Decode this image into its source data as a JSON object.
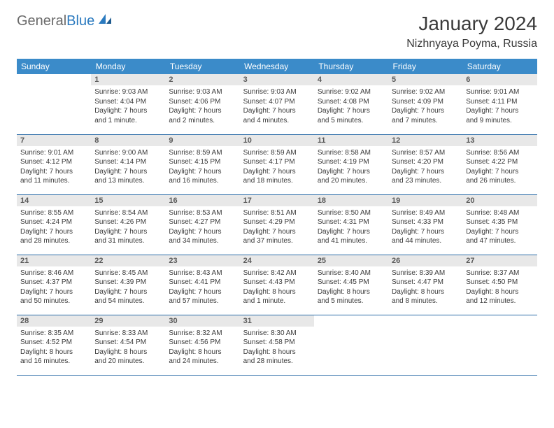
{
  "logo": {
    "part1": "General",
    "part2": "Blue"
  },
  "header": {
    "month": "January 2024",
    "location": "Nizhnyaya Poyma, Russia"
  },
  "colors": {
    "header_bg": "#3b8bc9",
    "header_text": "#ffffff",
    "daynum_bg": "#e8e8e8",
    "row_border": "#2b6ca8",
    "body_text": "#3a3a3a",
    "logo_accent": "#2b7abf"
  },
  "days_of_week": [
    "Sunday",
    "Monday",
    "Tuesday",
    "Wednesday",
    "Thursday",
    "Friday",
    "Saturday"
  ],
  "weeks": [
    [
      {
        "empty": true
      },
      {
        "num": "1",
        "sunrise": "Sunrise: 9:03 AM",
        "sunset": "Sunset: 4:04 PM",
        "daylight1": "Daylight: 7 hours",
        "daylight2": "and 1 minute."
      },
      {
        "num": "2",
        "sunrise": "Sunrise: 9:03 AM",
        "sunset": "Sunset: 4:06 PM",
        "daylight1": "Daylight: 7 hours",
        "daylight2": "and 2 minutes."
      },
      {
        "num": "3",
        "sunrise": "Sunrise: 9:03 AM",
        "sunset": "Sunset: 4:07 PM",
        "daylight1": "Daylight: 7 hours",
        "daylight2": "and 4 minutes."
      },
      {
        "num": "4",
        "sunrise": "Sunrise: 9:02 AM",
        "sunset": "Sunset: 4:08 PM",
        "daylight1": "Daylight: 7 hours",
        "daylight2": "and 5 minutes."
      },
      {
        "num": "5",
        "sunrise": "Sunrise: 9:02 AM",
        "sunset": "Sunset: 4:09 PM",
        "daylight1": "Daylight: 7 hours",
        "daylight2": "and 7 minutes."
      },
      {
        "num": "6",
        "sunrise": "Sunrise: 9:01 AM",
        "sunset": "Sunset: 4:11 PM",
        "daylight1": "Daylight: 7 hours",
        "daylight2": "and 9 minutes."
      }
    ],
    [
      {
        "num": "7",
        "sunrise": "Sunrise: 9:01 AM",
        "sunset": "Sunset: 4:12 PM",
        "daylight1": "Daylight: 7 hours",
        "daylight2": "and 11 minutes."
      },
      {
        "num": "8",
        "sunrise": "Sunrise: 9:00 AM",
        "sunset": "Sunset: 4:14 PM",
        "daylight1": "Daylight: 7 hours",
        "daylight2": "and 13 minutes."
      },
      {
        "num": "9",
        "sunrise": "Sunrise: 8:59 AM",
        "sunset": "Sunset: 4:15 PM",
        "daylight1": "Daylight: 7 hours",
        "daylight2": "and 16 minutes."
      },
      {
        "num": "10",
        "sunrise": "Sunrise: 8:59 AM",
        "sunset": "Sunset: 4:17 PM",
        "daylight1": "Daylight: 7 hours",
        "daylight2": "and 18 minutes."
      },
      {
        "num": "11",
        "sunrise": "Sunrise: 8:58 AM",
        "sunset": "Sunset: 4:19 PM",
        "daylight1": "Daylight: 7 hours",
        "daylight2": "and 20 minutes."
      },
      {
        "num": "12",
        "sunrise": "Sunrise: 8:57 AM",
        "sunset": "Sunset: 4:20 PM",
        "daylight1": "Daylight: 7 hours",
        "daylight2": "and 23 minutes."
      },
      {
        "num": "13",
        "sunrise": "Sunrise: 8:56 AM",
        "sunset": "Sunset: 4:22 PM",
        "daylight1": "Daylight: 7 hours",
        "daylight2": "and 26 minutes."
      }
    ],
    [
      {
        "num": "14",
        "sunrise": "Sunrise: 8:55 AM",
        "sunset": "Sunset: 4:24 PM",
        "daylight1": "Daylight: 7 hours",
        "daylight2": "and 28 minutes."
      },
      {
        "num": "15",
        "sunrise": "Sunrise: 8:54 AM",
        "sunset": "Sunset: 4:26 PM",
        "daylight1": "Daylight: 7 hours",
        "daylight2": "and 31 minutes."
      },
      {
        "num": "16",
        "sunrise": "Sunrise: 8:53 AM",
        "sunset": "Sunset: 4:27 PM",
        "daylight1": "Daylight: 7 hours",
        "daylight2": "and 34 minutes."
      },
      {
        "num": "17",
        "sunrise": "Sunrise: 8:51 AM",
        "sunset": "Sunset: 4:29 PM",
        "daylight1": "Daylight: 7 hours",
        "daylight2": "and 37 minutes."
      },
      {
        "num": "18",
        "sunrise": "Sunrise: 8:50 AM",
        "sunset": "Sunset: 4:31 PM",
        "daylight1": "Daylight: 7 hours",
        "daylight2": "and 41 minutes."
      },
      {
        "num": "19",
        "sunrise": "Sunrise: 8:49 AM",
        "sunset": "Sunset: 4:33 PM",
        "daylight1": "Daylight: 7 hours",
        "daylight2": "and 44 minutes."
      },
      {
        "num": "20",
        "sunrise": "Sunrise: 8:48 AM",
        "sunset": "Sunset: 4:35 PM",
        "daylight1": "Daylight: 7 hours",
        "daylight2": "and 47 minutes."
      }
    ],
    [
      {
        "num": "21",
        "sunrise": "Sunrise: 8:46 AM",
        "sunset": "Sunset: 4:37 PM",
        "daylight1": "Daylight: 7 hours",
        "daylight2": "and 50 minutes."
      },
      {
        "num": "22",
        "sunrise": "Sunrise: 8:45 AM",
        "sunset": "Sunset: 4:39 PM",
        "daylight1": "Daylight: 7 hours",
        "daylight2": "and 54 minutes."
      },
      {
        "num": "23",
        "sunrise": "Sunrise: 8:43 AM",
        "sunset": "Sunset: 4:41 PM",
        "daylight1": "Daylight: 7 hours",
        "daylight2": "and 57 minutes."
      },
      {
        "num": "24",
        "sunrise": "Sunrise: 8:42 AM",
        "sunset": "Sunset: 4:43 PM",
        "daylight1": "Daylight: 8 hours",
        "daylight2": "and 1 minute."
      },
      {
        "num": "25",
        "sunrise": "Sunrise: 8:40 AM",
        "sunset": "Sunset: 4:45 PM",
        "daylight1": "Daylight: 8 hours",
        "daylight2": "and 5 minutes."
      },
      {
        "num": "26",
        "sunrise": "Sunrise: 8:39 AM",
        "sunset": "Sunset: 4:47 PM",
        "daylight1": "Daylight: 8 hours",
        "daylight2": "and 8 minutes."
      },
      {
        "num": "27",
        "sunrise": "Sunrise: 8:37 AM",
        "sunset": "Sunset: 4:50 PM",
        "daylight1": "Daylight: 8 hours",
        "daylight2": "and 12 minutes."
      }
    ],
    [
      {
        "num": "28",
        "sunrise": "Sunrise: 8:35 AM",
        "sunset": "Sunset: 4:52 PM",
        "daylight1": "Daylight: 8 hours",
        "daylight2": "and 16 minutes."
      },
      {
        "num": "29",
        "sunrise": "Sunrise: 8:33 AM",
        "sunset": "Sunset: 4:54 PM",
        "daylight1": "Daylight: 8 hours",
        "daylight2": "and 20 minutes."
      },
      {
        "num": "30",
        "sunrise": "Sunrise: 8:32 AM",
        "sunset": "Sunset: 4:56 PM",
        "daylight1": "Daylight: 8 hours",
        "daylight2": "and 24 minutes."
      },
      {
        "num": "31",
        "sunrise": "Sunrise: 8:30 AM",
        "sunset": "Sunset: 4:58 PM",
        "daylight1": "Daylight: 8 hours",
        "daylight2": "and 28 minutes."
      },
      {
        "empty": true
      },
      {
        "empty": true
      },
      {
        "empty": true
      }
    ]
  ]
}
